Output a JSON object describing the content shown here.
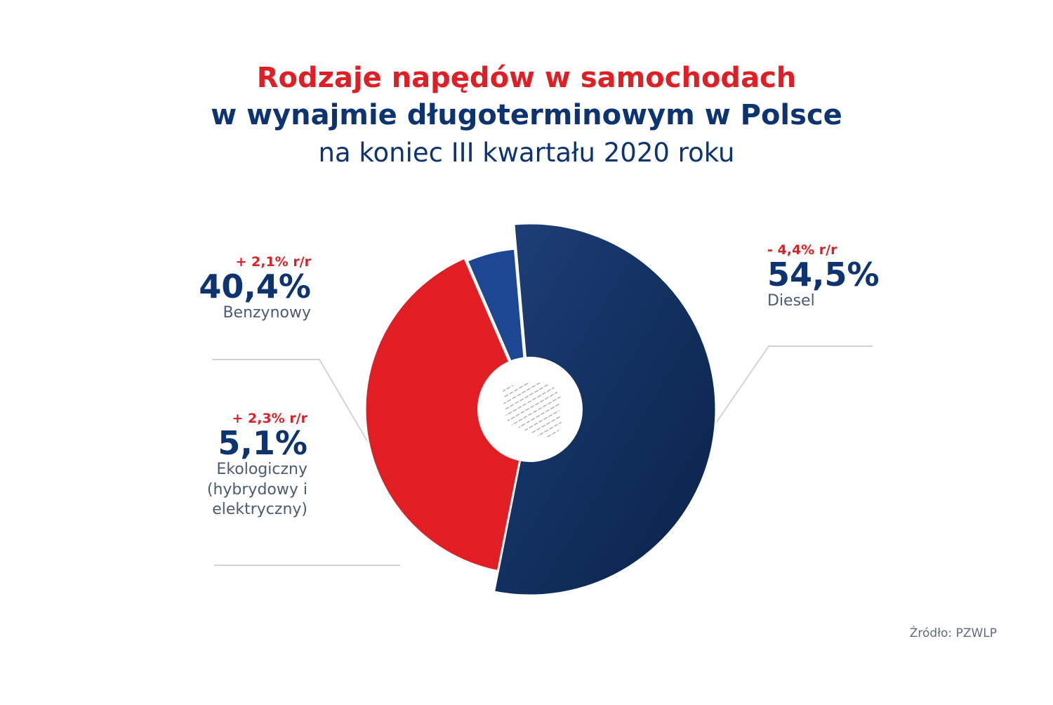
{
  "title": {
    "line1": "Rodzaje napędów w samochodach",
    "line2": "w wynajmie długoterminowym w Polsce",
    "line3": "na koniec III kwartału 2020 roku"
  },
  "source": "Źródło: PZWLP",
  "colors": {
    "diesel": "#0f2c5f",
    "benzynowy": "#e01e24",
    "ekologiczny": "#1d4793",
    "title_red": "#e01e24",
    "title_blue": "#0d3471"
  },
  "chart_data": {
    "type": "pie",
    "title": "Rodzaje napędów w samochodach w wynajmie długoterminowym w Polsce",
    "subtitle": "na koniec III kwartału 2020 roku",
    "slices": [
      {
        "label": "Diesel",
        "value": 54.5,
        "value_label": "54,5%",
        "change": "- 4,4% r/r"
      },
      {
        "label": "Benzynowy",
        "value": 40.4,
        "value_label": "40,4%",
        "change": "+ 2,1% r/r"
      },
      {
        "label": "Ekologiczny (hybrydowy i elektryczny)",
        "label_lines": [
          "Ekologiczny",
          "(hybrydowy i",
          "elektryczny)"
        ],
        "value": 5.1,
        "value_label": "5,1%",
        "change": "+ 2,3% r/r"
      }
    ],
    "center_icon": "poland-map-icon"
  }
}
